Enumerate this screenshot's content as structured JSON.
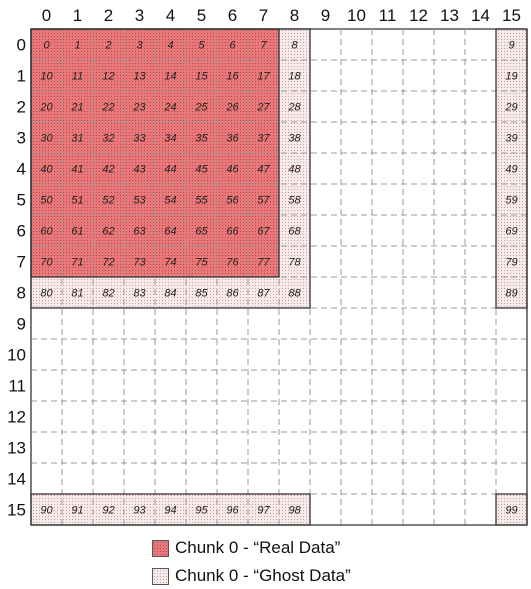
{
  "grid": {
    "columns": [
      "0",
      "1",
      "2",
      "3",
      "4",
      "5",
      "6",
      "7",
      "8",
      "9",
      "10",
      "11",
      "12",
      "13",
      "14",
      "15"
    ],
    "rows": [
      "0",
      "1",
      "2",
      "3",
      "4",
      "5",
      "6",
      "7",
      "8",
      "9",
      "10",
      "11",
      "12",
      "13",
      "14",
      "15"
    ]
  },
  "chunk": {
    "real_cells": [
      {
        "r": 0,
        "c": 0,
        "label": "0"
      },
      {
        "r": 0,
        "c": 1,
        "label": "1"
      },
      {
        "r": 0,
        "c": 2,
        "label": "2"
      },
      {
        "r": 0,
        "c": 3,
        "label": "3"
      },
      {
        "r": 0,
        "c": 4,
        "label": "4"
      },
      {
        "r": 0,
        "c": 5,
        "label": "5"
      },
      {
        "r": 0,
        "c": 6,
        "label": "6"
      },
      {
        "r": 0,
        "c": 7,
        "label": "7"
      },
      {
        "r": 1,
        "c": 0,
        "label": "10"
      },
      {
        "r": 1,
        "c": 1,
        "label": "11"
      },
      {
        "r": 1,
        "c": 2,
        "label": "12"
      },
      {
        "r": 1,
        "c": 3,
        "label": "13"
      },
      {
        "r": 1,
        "c": 4,
        "label": "14"
      },
      {
        "r": 1,
        "c": 5,
        "label": "15"
      },
      {
        "r": 1,
        "c": 6,
        "label": "16"
      },
      {
        "r": 1,
        "c": 7,
        "label": "17"
      },
      {
        "r": 2,
        "c": 0,
        "label": "20"
      },
      {
        "r": 2,
        "c": 1,
        "label": "21"
      },
      {
        "r": 2,
        "c": 2,
        "label": "22"
      },
      {
        "r": 2,
        "c": 3,
        "label": "23"
      },
      {
        "r": 2,
        "c": 4,
        "label": "24"
      },
      {
        "r": 2,
        "c": 5,
        "label": "25"
      },
      {
        "r": 2,
        "c": 6,
        "label": "26"
      },
      {
        "r": 2,
        "c": 7,
        "label": "27"
      },
      {
        "r": 3,
        "c": 0,
        "label": "30"
      },
      {
        "r": 3,
        "c": 1,
        "label": "31"
      },
      {
        "r": 3,
        "c": 2,
        "label": "32"
      },
      {
        "r": 3,
        "c": 3,
        "label": "33"
      },
      {
        "r": 3,
        "c": 4,
        "label": "34"
      },
      {
        "r": 3,
        "c": 5,
        "label": "35"
      },
      {
        "r": 3,
        "c": 6,
        "label": "36"
      },
      {
        "r": 3,
        "c": 7,
        "label": "37"
      },
      {
        "r": 4,
        "c": 0,
        "label": "40"
      },
      {
        "r": 4,
        "c": 1,
        "label": "41"
      },
      {
        "r": 4,
        "c": 2,
        "label": "42"
      },
      {
        "r": 4,
        "c": 3,
        "label": "43"
      },
      {
        "r": 4,
        "c": 4,
        "label": "44"
      },
      {
        "r": 4,
        "c": 5,
        "label": "45"
      },
      {
        "r": 4,
        "c": 6,
        "label": "46"
      },
      {
        "r": 4,
        "c": 7,
        "label": "47"
      },
      {
        "r": 5,
        "c": 0,
        "label": "50"
      },
      {
        "r": 5,
        "c": 1,
        "label": "51"
      },
      {
        "r": 5,
        "c": 2,
        "label": "52"
      },
      {
        "r": 5,
        "c": 3,
        "label": "53"
      },
      {
        "r": 5,
        "c": 4,
        "label": "54"
      },
      {
        "r": 5,
        "c": 5,
        "label": "55"
      },
      {
        "r": 5,
        "c": 6,
        "label": "56"
      },
      {
        "r": 5,
        "c": 7,
        "label": "57"
      },
      {
        "r": 6,
        "c": 0,
        "label": "60"
      },
      {
        "r": 6,
        "c": 1,
        "label": "61"
      },
      {
        "r": 6,
        "c": 2,
        "label": "62"
      },
      {
        "r": 6,
        "c": 3,
        "label": "63"
      },
      {
        "r": 6,
        "c": 4,
        "label": "64"
      },
      {
        "r": 6,
        "c": 5,
        "label": "65"
      },
      {
        "r": 6,
        "c": 6,
        "label": "66"
      },
      {
        "r": 6,
        "c": 7,
        "label": "67"
      },
      {
        "r": 7,
        "c": 0,
        "label": "70"
      },
      {
        "r": 7,
        "c": 1,
        "label": "71"
      },
      {
        "r": 7,
        "c": 2,
        "label": "72"
      },
      {
        "r": 7,
        "c": 3,
        "label": "73"
      },
      {
        "r": 7,
        "c": 4,
        "label": "74"
      },
      {
        "r": 7,
        "c": 5,
        "label": "75"
      },
      {
        "r": 7,
        "c": 6,
        "label": "76"
      },
      {
        "r": 7,
        "c": 7,
        "label": "77"
      }
    ],
    "ghost_cells": [
      {
        "r": 0,
        "c": 8,
        "label": "8"
      },
      {
        "r": 1,
        "c": 8,
        "label": "18"
      },
      {
        "r": 2,
        "c": 8,
        "label": "28"
      },
      {
        "r": 3,
        "c": 8,
        "label": "38"
      },
      {
        "r": 4,
        "c": 8,
        "label": "48"
      },
      {
        "r": 5,
        "c": 8,
        "label": "58"
      },
      {
        "r": 6,
        "c": 8,
        "label": "68"
      },
      {
        "r": 7,
        "c": 8,
        "label": "78"
      },
      {
        "r": 8,
        "c": 0,
        "label": "80"
      },
      {
        "r": 8,
        "c": 1,
        "label": "81"
      },
      {
        "r": 8,
        "c": 2,
        "label": "82"
      },
      {
        "r": 8,
        "c": 3,
        "label": "83"
      },
      {
        "r": 8,
        "c": 4,
        "label": "84"
      },
      {
        "r": 8,
        "c": 5,
        "label": "85"
      },
      {
        "r": 8,
        "c": 6,
        "label": "86"
      },
      {
        "r": 8,
        "c": 7,
        "label": "87"
      },
      {
        "r": 8,
        "c": 8,
        "label": "88"
      },
      {
        "r": 0,
        "c": 15,
        "label": "9"
      },
      {
        "r": 1,
        "c": 15,
        "label": "19"
      },
      {
        "r": 2,
        "c": 15,
        "label": "29"
      },
      {
        "r": 3,
        "c": 15,
        "label": "39"
      },
      {
        "r": 4,
        "c": 15,
        "label": "49"
      },
      {
        "r": 5,
        "c": 15,
        "label": "59"
      },
      {
        "r": 6,
        "c": 15,
        "label": "69"
      },
      {
        "r": 7,
        "c": 15,
        "label": "79"
      },
      {
        "r": 8,
        "c": 15,
        "label": "89"
      },
      {
        "r": 15,
        "c": 0,
        "label": "90"
      },
      {
        "r": 15,
        "c": 1,
        "label": "91"
      },
      {
        "r": 15,
        "c": 2,
        "label": "92"
      },
      {
        "r": 15,
        "c": 3,
        "label": "93"
      },
      {
        "r": 15,
        "c": 4,
        "label": "94"
      },
      {
        "r": 15,
        "c": 5,
        "label": "95"
      },
      {
        "r": 15,
        "c": 6,
        "label": "96"
      },
      {
        "r": 15,
        "c": 7,
        "label": "97"
      },
      {
        "r": 15,
        "c": 8,
        "label": "98"
      },
      {
        "r": 15,
        "c": 15,
        "label": "99"
      }
    ]
  },
  "legend": {
    "real_label": "Chunk 0 - “Real Data”",
    "ghost_label": "Chunk 0 - “Ghost Data”"
  },
  "colors": {
    "real_fill": "#e8787a",
    "real_dot": "#b84a4c",
    "ghost_fill": "#f7eaea",
    "ghost_dot": "#c9a0a0",
    "grid_line": "#9a9a9a",
    "outline": "#333333"
  }
}
